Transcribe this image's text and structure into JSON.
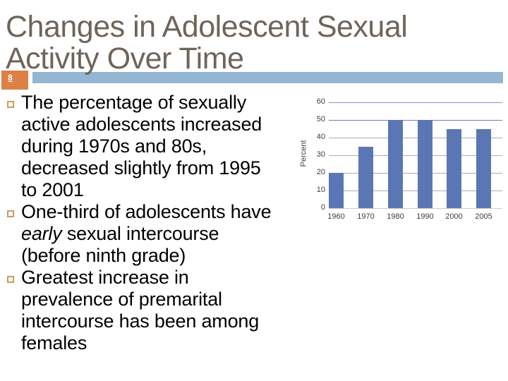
{
  "slide": {
    "title": "Changes in Adolescent Sexual Activity Over Time",
    "page_number": "8"
  },
  "colors": {
    "title_text": "#6F6459",
    "accent_orange": "#DD8047",
    "accent_blue": "#94B6D2",
    "bullet_square_border": "#CE9768",
    "body_text": "#000000"
  },
  "bullets": [
    {
      "segments": [
        {
          "text": "The percentage of sexually active adolescents increased during 1970s and 80s, decreased slightly from 1995 to 2001",
          "italic": false
        }
      ]
    },
    {
      "segments": [
        {
          "text": "One-third of adolescents have ",
          "italic": false
        },
        {
          "text": "early",
          "italic": true
        },
        {
          "text": " sexual intercourse (before ninth grade)",
          "italic": false
        }
      ]
    },
    {
      "segments": [
        {
          "text": "Greatest increase in prevalence of premarital intercourse has been among females",
          "italic": false
        }
      ]
    }
  ],
  "chart_data": {
    "type": "bar",
    "categories": [
      "1960",
      "1970",
      "1980",
      "1990",
      "2000",
      "2005"
    ],
    "values": [
      20,
      35,
      50,
      50,
      45,
      45
    ],
    "title": "",
    "xlabel": "",
    "ylabel": "Percent",
    "ylim": [
      0,
      60
    ],
    "yticks": [
      0,
      10,
      20,
      30,
      40,
      50,
      60
    ],
    "grid": true,
    "legend": false,
    "bar_color": "#5B76B4",
    "grid_colors": {
      "60": "#8A94BA",
      "50": "#7280B6",
      "default": "#A7ACB4",
      "axis": "#C6CAD0"
    }
  }
}
